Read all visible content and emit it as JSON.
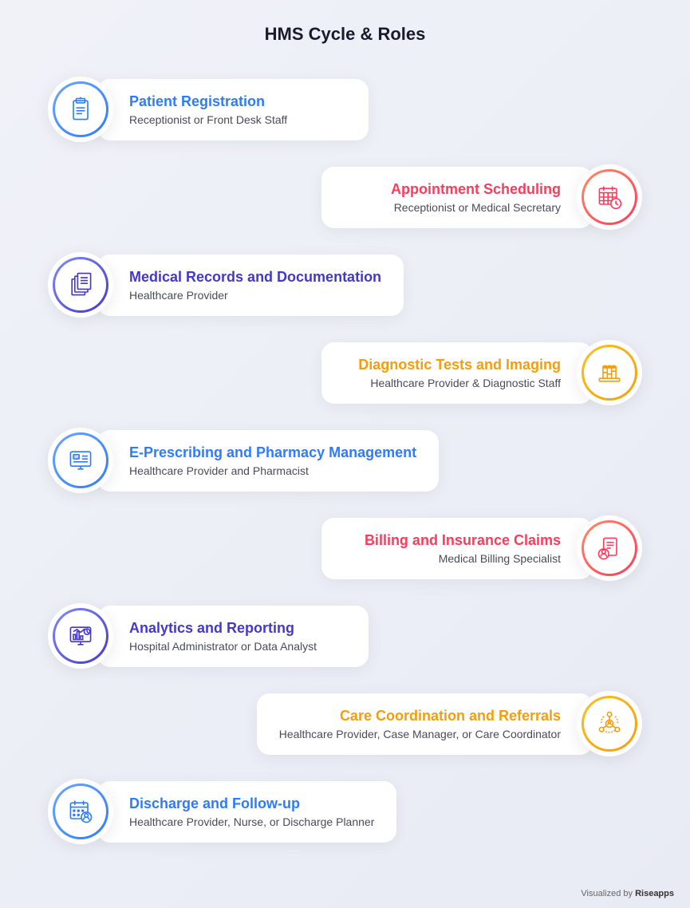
{
  "title": "HMS Cycle & Roles",
  "footer_prefix": "Visualized by ",
  "footer_brand": "Riseapps",
  "colors": {
    "blue": "#2e7bff",
    "red": "#ff3b5c",
    "indigo": "#4338ca",
    "orange": "#f59e0b",
    "blue_grad_a": "#6aa8ff",
    "blue_grad_b": "#2e7bff",
    "red_grad_a": "#ff8a65",
    "red_grad_b": "#ff3b5c",
    "indigo_grad_a": "#818cf8",
    "indigo_grad_b": "#4338ca",
    "orange_grad_a": "#fbbf24",
    "orange_grad_b": "#f59e0b"
  },
  "items": [
    {
      "side": "left",
      "title": "Patient Registration",
      "subtitle": "Receptionist or Front Desk Staff",
      "color": "blue",
      "icon": "clipboard"
    },
    {
      "side": "right",
      "title": "Appointment Scheduling",
      "subtitle": "Receptionist or Medical Secretary",
      "color": "red",
      "icon": "calendar-clock"
    },
    {
      "side": "left",
      "title": "Medical Records and Documentation",
      "subtitle": "Healthcare Provider",
      "color": "indigo",
      "icon": "documents"
    },
    {
      "side": "right",
      "title": "Diagnostic Tests and Imaging",
      "subtitle": "Healthcare Provider & Diagnostic Staff",
      "color": "orange",
      "icon": "beakers"
    },
    {
      "side": "left",
      "title": "E-Prescribing and Pharmacy Management",
      "subtitle": "Healthcare Provider and Pharmacist",
      "color": "blue",
      "icon": "rx-screen"
    },
    {
      "side": "right",
      "title": "Billing and Insurance Claims",
      "subtitle": "Medical Billing Specialist",
      "color": "red",
      "icon": "invoice"
    },
    {
      "side": "left",
      "title": "Analytics and Reporting",
      "subtitle": "Hospital Administrator or Data Analyst",
      "color": "indigo",
      "icon": "analytics"
    },
    {
      "side": "right",
      "title": "Care Coordination and Referrals",
      "subtitle": "Healthcare Provider, Case Manager, or Care Coordinator",
      "color": "orange",
      "icon": "network"
    },
    {
      "side": "left",
      "title": "Discharge and Follow-up",
      "subtitle": "Healthcare Provider, Nurse, or Discharge Planner",
      "color": "blue",
      "icon": "calendar-user"
    }
  ]
}
